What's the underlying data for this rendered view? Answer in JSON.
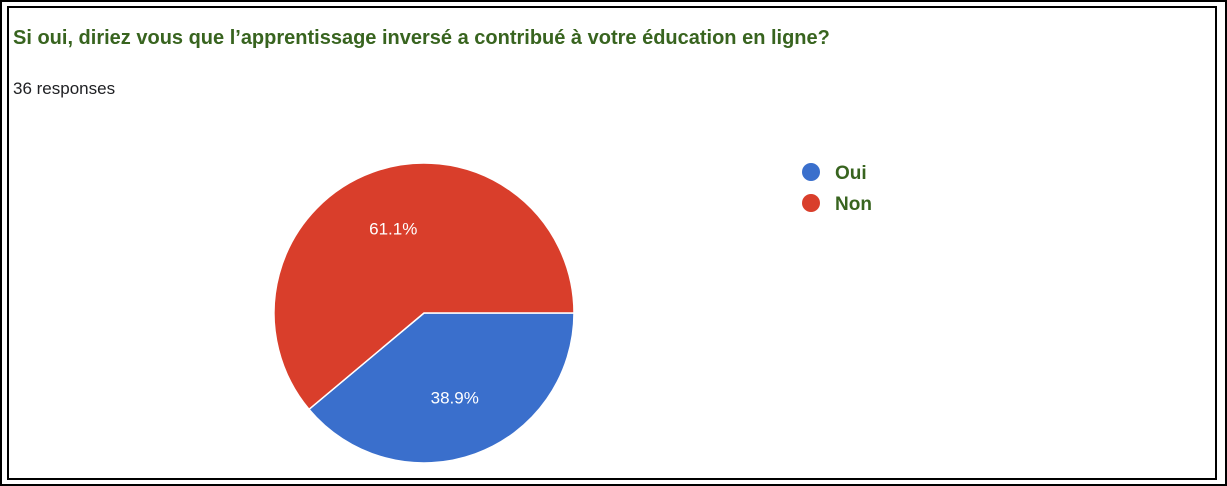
{
  "header": {
    "question": "Si oui, diriez vous que l’apprentissage inversé a contribué à votre éducation en ligne?",
    "response_count": "36 responses"
  },
  "colors": {
    "title": "#38641f",
    "oui": "#3a6fcc",
    "non": "#d93e2b"
  },
  "chart_data": {
    "type": "pie",
    "title": "Si oui, diriez vous que l’apprentissage inversé a contribué à votre éducation en ligne?",
    "subtitle": "36 responses",
    "legend_position": "right",
    "slices": [
      {
        "label": "Oui",
        "value": 38.9,
        "display": "38.9%",
        "color": "#3a6fcc"
      },
      {
        "label": "Non",
        "value": 61.1,
        "display": "61.1%",
        "color": "#d93e2b"
      }
    ]
  }
}
